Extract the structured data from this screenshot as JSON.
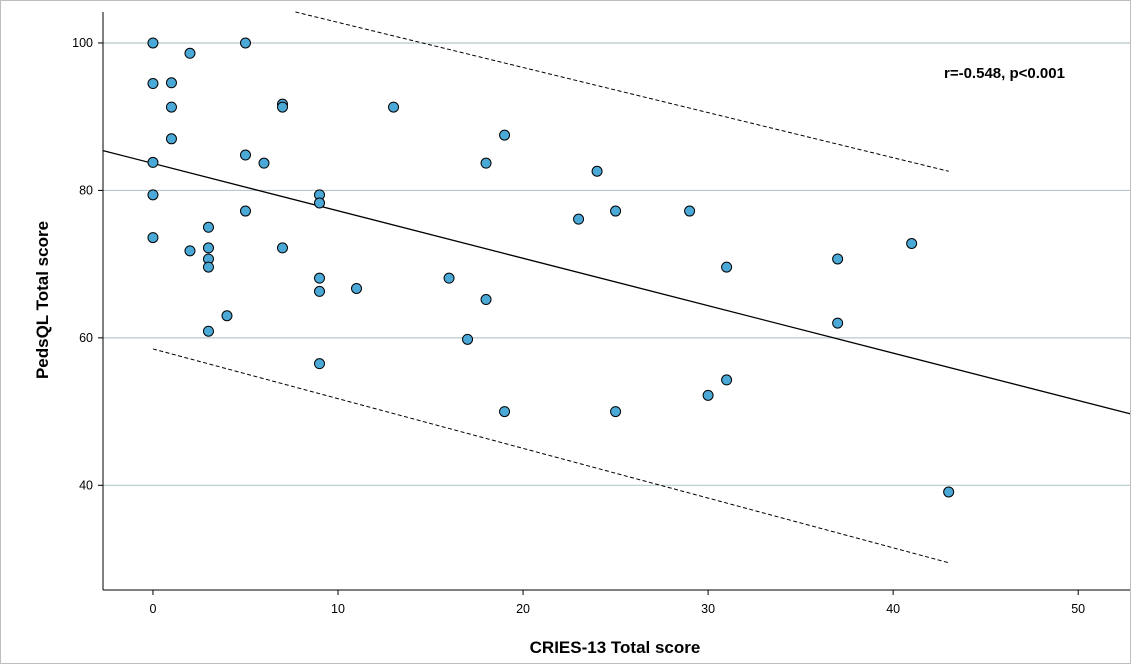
{
  "chart_data": {
    "type": "scatter",
    "title": "",
    "xlabel": "CRIES-13 Total score",
    "ylabel": "PedsQL Total score",
    "annotation": "r=-0.548, p<0.001",
    "xlim": [
      -2.7,
      52.8
    ],
    "ylim": [
      25.8,
      104.2
    ],
    "xticks": [
      0,
      10,
      20,
      30,
      40,
      50
    ],
    "yticks": [
      40,
      60,
      80,
      100
    ],
    "grid": "horizontal",
    "point_color": "#4ba9d8",
    "points": [
      {
        "x": 0,
        "y": 100
      },
      {
        "x": 0,
        "y": 94.5
      },
      {
        "x": 0,
        "y": 83.8
      },
      {
        "x": 0,
        "y": 79.4
      },
      {
        "x": 0,
        "y": 73.6
      },
      {
        "x": 1,
        "y": 94.6
      },
      {
        "x": 1,
        "y": 91.3
      },
      {
        "x": 1,
        "y": 87
      },
      {
        "x": 2,
        "y": 98.6
      },
      {
        "x": 2,
        "y": 71.8
      },
      {
        "x": 3,
        "y": 75
      },
      {
        "x": 3,
        "y": 72.2
      },
      {
        "x": 3,
        "y": 70.7
      },
      {
        "x": 3,
        "y": 69.6
      },
      {
        "x": 3,
        "y": 60.9
      },
      {
        "x": 4,
        "y": 63
      },
      {
        "x": 5,
        "y": 100
      },
      {
        "x": 5,
        "y": 84.8
      },
      {
        "x": 5,
        "y": 77.2
      },
      {
        "x": 6,
        "y": 83.7
      },
      {
        "x": 7,
        "y": 91.7
      },
      {
        "x": 7,
        "y": 91.3
      },
      {
        "x": 7,
        "y": 72.2
      },
      {
        "x": 9,
        "y": 79.4
      },
      {
        "x": 9,
        "y": 78.3
      },
      {
        "x": 9,
        "y": 68.1
      },
      {
        "x": 9,
        "y": 66.3
      },
      {
        "x": 9,
        "y": 56.5
      },
      {
        "x": 11,
        "y": 66.7
      },
      {
        "x": 13,
        "y": 91.3
      },
      {
        "x": 16,
        "y": 68.1
      },
      {
        "x": 17,
        "y": 59.8
      },
      {
        "x": 18,
        "y": 83.7
      },
      {
        "x": 18,
        "y": 65.2
      },
      {
        "x": 19,
        "y": 87.5
      },
      {
        "x": 19,
        "y": 50
      },
      {
        "x": 23,
        "y": 76.1
      },
      {
        "x": 24,
        "y": 82.6
      },
      {
        "x": 25,
        "y": 77.2
      },
      {
        "x": 25,
        "y": 50
      },
      {
        "x": 29,
        "y": 77.2
      },
      {
        "x": 30,
        "y": 52.2
      },
      {
        "x": 31,
        "y": 69.6
      },
      {
        "x": 31,
        "y": 54.3
      },
      {
        "x": 37,
        "y": 70.7
      },
      {
        "x": 37,
        "y": 62
      },
      {
        "x": 41,
        "y": 72.8
      },
      {
        "x": 43,
        "y": 39.1
      }
    ],
    "fit_line": {
      "x": [
        -2.7,
        52.8
      ],
      "y": [
        85.4,
        49.7
      ]
    },
    "ci_upper": {
      "x": [
        7.7,
        43
      ],
      "y": [
        104.2,
        82.6
      ]
    },
    "ci_lower": {
      "x": [
        0,
        43
      ],
      "y": [
        58.5,
        29.5
      ]
    }
  }
}
